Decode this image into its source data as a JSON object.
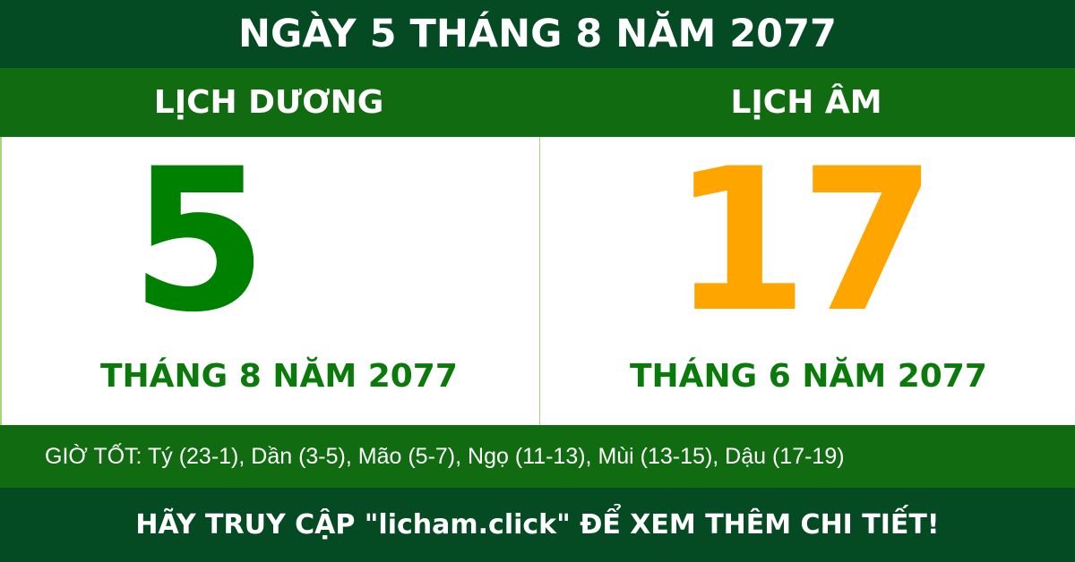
{
  "title": "NGÀY 5 THÁNG 8 NĂM 2077",
  "solar": {
    "header": "LỊCH DƯƠNG",
    "day": "5",
    "month_year": "THÁNG 8 NĂM 2077"
  },
  "lunar": {
    "header": "LỊCH ÂM",
    "day": "17",
    "month_year": "THÁNG 6 NĂM 2077"
  },
  "good_hours": "GIỜ TỐT: Tý (23-1), Dần (3-5), Mão (5-7), Ngọ (11-13), Mùi (13-15), Dậu (17-19)",
  "footer": "HÃY TRUY CẬP \"licham.click\" ĐỂ XEM THÊM CHI TIẾT!",
  "colors": {
    "dark_green": "#044a22",
    "green": "#116b10",
    "solar_day": "#008000",
    "lunar_day": "#ffa500"
  }
}
